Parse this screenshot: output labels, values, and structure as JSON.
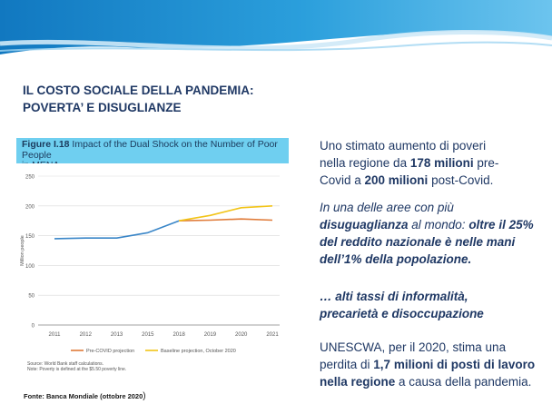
{
  "slide": {
    "title_lines": [
      "IL COSTO SOCIALE DELLA PANDEMIA:",
      "POVERTA’ E DISUGLIANZE"
    ],
    "source_note": "Fonte: Banca Mondiale (ottobre 2020",
    "source_paren": ")"
  },
  "figure": {
    "number": "Figure I.18",
    "caption_line1": " Impact of the Dual Shock on the Number of Poor People",
    "caption_line2": "in MENA",
    "notes": [
      "Source: World Bank staff calculations.",
      "Note: Poverty is defined at the $5.50 poverty line."
    ]
  },
  "paragraphs": {
    "p1": [
      "Uno stimato aumento di poveri",
      "nella regione da ",
      "178 milioni",
      " pre-",
      "Covid a ",
      "200 milioni",
      " post-Covid."
    ],
    "p2": [
      "In una delle aree con più",
      "disuguaglianza",
      "  al mondo: ",
      "oltre il 25%",
      "del reddito nazionale è  nelle mani",
      "dell’1% della popolazione."
    ],
    "p3": [
      "… alti tassi di informalità,",
      "precarietà e disoccupazione"
    ],
    "p4": [
      "UNESCWA, per il 2020, stima una",
      "perdita di ",
      "1,7 milioni di posti di lavoro",
      "nella regione",
      " a causa della pandemia."
    ]
  },
  "colors": {
    "banner_dark": "#1b8fd1",
    "banner_light": "#e8f4fb",
    "title": "#1f3864",
    "figure_header": "#6fcff0",
    "baseline_series": "#3a86c8",
    "precovid_series": "#e07b39",
    "projection_series": "#f2c418"
  },
  "chart_data": {
    "type": "line",
    "x": [
      "2011",
      "2012",
      "2013",
      "2015",
      "2018",
      "2019",
      "2020",
      "2021"
    ],
    "ylabel": "Million people",
    "ylim": [
      0,
      250
    ],
    "yticks": [
      0,
      50,
      100,
      150,
      200,
      250
    ],
    "grid": true,
    "legend_position": "bottom",
    "series": [
      {
        "name": "",
        "values": [
          145,
          146,
          146,
          155,
          175,
          null,
          null,
          null
        ]
      },
      {
        "name": "Pre-COVID projection",
        "values": [
          null,
          null,
          null,
          null,
          175,
          176,
          178,
          176
        ]
      },
      {
        "name": "Baseline projection, October 2020",
        "values": [
          null,
          null,
          null,
          null,
          175,
          184,
          197,
          200
        ]
      }
    ]
  }
}
